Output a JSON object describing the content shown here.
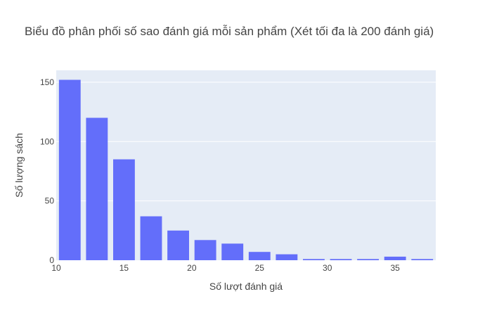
{
  "chart_data": {
    "type": "bar",
    "title": "Biểu đồ phân phối số sao đánh giá mỗi sản phẩm (Xét tối đa là 200 đánh giá)",
    "xlabel": "Số lượt đánh giá",
    "ylabel": "Số lượng sách",
    "x": [
      11,
      13,
      15,
      17,
      19,
      21,
      23,
      25,
      27,
      29,
      31,
      33,
      35,
      37
    ],
    "values": [
      152,
      120,
      85,
      37,
      25,
      17,
      14,
      7,
      5,
      1,
      1,
      1,
      3,
      1
    ],
    "bin_width": 2,
    "xlim": [
      10,
      38
    ],
    "ylim": [
      0,
      160
    ],
    "xticks": [
      10,
      15,
      20,
      25,
      30,
      35
    ],
    "yticks": [
      0,
      50,
      100,
      150
    ],
    "bar_color": "#636efa",
    "plot_bgcolor": "#e5ecf6",
    "grid": true
  }
}
